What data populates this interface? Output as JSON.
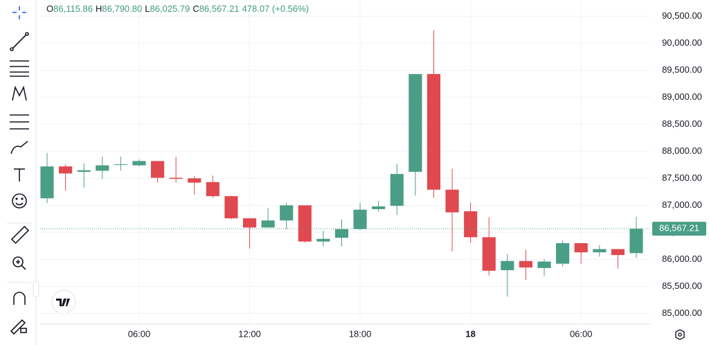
{
  "chart_data": {
    "type": "candlestick",
    "header": {
      "items": [
        {
          "key": "O",
          "text": "86,115.86"
        },
        {
          "key": "H",
          "text": "86,790.80"
        },
        {
          "key": "L",
          "text": "86,025.79"
        },
        {
          "key": "C",
          "text": "86,567.21"
        }
      ],
      "change": "478.07 (+0.56%)"
    },
    "categories": [
      null,
      null,
      null,
      null,
      null,
      "06:00",
      null,
      null,
      null,
      null,
      null,
      "12:00",
      null,
      null,
      null,
      null,
      null,
      "18:00",
      null,
      null,
      null,
      null,
      null,
      "18",
      null,
      null,
      null,
      null,
      null,
      "06:00",
      null,
      null,
      null
    ],
    "open": [
      87130,
      87720,
      87620,
      87640,
      87750,
      87740,
      87820,
      87510,
      87500,
      87430,
      87170,
      86760,
      86590,
      86720,
      87000,
      86330,
      86400,
      86560,
      86930,
      86990,
      87620,
      89430,
      87290,
      86890,
      86410,
      85800,
      85970,
      85840,
      85920,
      86300,
      86130,
      86190,
      86115.86
    ],
    "high": [
      87970,
      87760,
      87780,
      87900,
      87900,
      87850,
      87820,
      87900,
      87540,
      87550,
      87180,
      86760,
      86950,
      87050,
      87000,
      86530,
      86740,
      87050,
      87080,
      87770,
      89430,
      90240,
      87680,
      87050,
      86780,
      86100,
      86180,
      86010,
      86350,
      86300,
      86260,
      86190,
      86790.8
    ],
    "low": [
      87040,
      87270,
      87330,
      87490,
      87640,
      87720,
      87420,
      87420,
      87200,
      87140,
      86740,
      86200,
      86590,
      86560,
      86310,
      86240,
      86240,
      86540,
      86880,
      86820,
      87180,
      87140,
      86150,
      86310,
      85700,
      85310,
      85620,
      85690,
      85870,
      85920,
      86050,
      85830,
      86025.79
    ],
    "close": [
      87720,
      87590,
      87650,
      87740,
      87760,
      87820,
      87510,
      87490,
      87420,
      87170,
      86760,
      86590,
      86720,
      87000,
      86330,
      86380,
      86560,
      86920,
      86980,
      87580,
      89430,
      87290,
      86870,
      86410,
      85790,
      85970,
      85850,
      85960,
      86300,
      86130,
      86190,
      86080,
      86567.21
    ],
    "up_color": "#4a9e86",
    "down_color": "#e0494f",
    "last_price_label": "86,567.21",
    "ylim": [
      84800,
      90800
    ],
    "yticks": [
      {
        "value": 85000,
        "label": "85,000.00"
      },
      {
        "value": 85500,
        "label": "85,500.00"
      },
      {
        "value": 86000,
        "label": "86,000.00"
      },
      {
        "value": 86500,
        "label": "86,500.00"
      },
      {
        "value": 87000,
        "label": "87,000.00"
      },
      {
        "value": 87500,
        "label": "87,500.00"
      },
      {
        "value": 88000,
        "label": "88,000.00"
      },
      {
        "value": 88500,
        "label": "88,500.00"
      },
      {
        "value": 89000,
        "label": "89,000.00"
      },
      {
        "value": 89500,
        "label": "89,500.00"
      },
      {
        "value": 90000,
        "label": "90,000.00"
      },
      {
        "value": 90500,
        "label": "90,500.00"
      }
    ],
    "grid": true
  }
}
